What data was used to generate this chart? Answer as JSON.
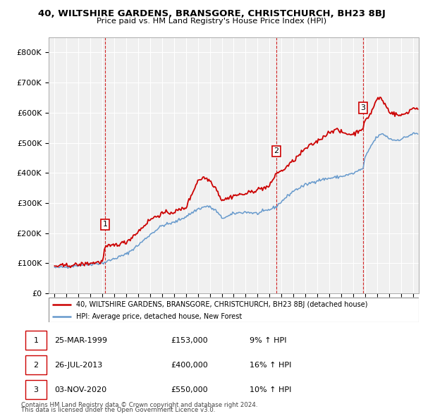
{
  "title": "40, WILTSHIRE GARDENS, BRANSGORE, CHRISTCHURCH, BH23 8BJ",
  "subtitle": "Price paid vs. HM Land Registry's House Price Index (HPI)",
  "legend_house": "40, WILTSHIRE GARDENS, BRANSGORE, CHRISTCHURCH, BH23 8BJ (detached house)",
  "legend_hpi": "HPI: Average price, detached house, New Forest",
  "transactions": [
    {
      "num": 1,
      "date": "25-MAR-1999",
      "price": 153000,
      "pct": "9%",
      "year": 1999.23
    },
    {
      "num": 2,
      "date": "26-JUL-2013",
      "price": 400000,
      "pct": "16%",
      "year": 2013.57
    },
    {
      "num": 3,
      "date": "03-NOV-2020",
      "price": 550000,
      "pct": "10%",
      "year": 2020.84
    }
  ],
  "footnote1": "Contains HM Land Registry data © Crown copyright and database right 2024.",
  "footnote2": "This data is licensed under the Open Government Licence v3.0.",
  "house_color": "#cc0000",
  "hpi_color": "#6699cc",
  "grid_color": "#dddddd",
  "ylim": [
    0,
    850000
  ],
  "yticks": [
    0,
    100000,
    200000,
    300000,
    400000,
    500000,
    600000,
    700000,
    800000
  ],
  "xlim_start": 1994.5,
  "xlim_end": 2025.5,
  "bg_color": "#f0f0f0"
}
